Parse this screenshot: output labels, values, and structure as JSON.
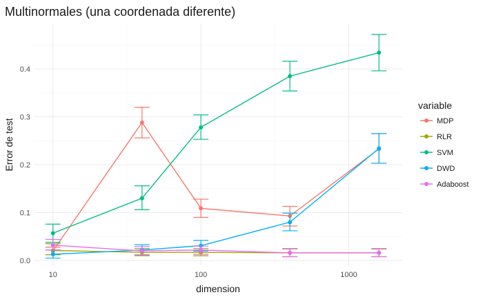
{
  "chart_data": {
    "type": "line",
    "title": "Multinormales (una coordenada diferente)",
    "xlabel": "dimension",
    "ylabel": "Error de test",
    "x_scale": "log10",
    "xlim": [
      7.5,
      2300
    ],
    "ylim": [
      -0.01,
      0.495
    ],
    "x_ticks": [
      10,
      100,
      1000
    ],
    "x_tick_labels": [
      "10",
      "100",
      "1000"
    ],
    "y_ticks": [
      0.0,
      0.1,
      0.2,
      0.3,
      0.4
    ],
    "y_tick_labels": [
      "0.0",
      "0.1",
      "0.2",
      "0.3",
      "0.4"
    ],
    "x": [
      10,
      40,
      100,
      400,
      1600
    ],
    "grid": true,
    "legend": {
      "title": "variable",
      "position": "right"
    },
    "series": [
      {
        "name": "MDP",
        "color": "#F8766D",
        "values": [
          0.02,
          0.288,
          0.109,
          0.093,
          0.233
        ],
        "lower": [
          0.012,
          0.256,
          0.09,
          0.072,
          0.203
        ],
        "upper": [
          0.028,
          0.32,
          0.128,
          0.113,
          0.265
        ]
      },
      {
        "name": "RLR",
        "color": "#A3A500",
        "values": [
          0.021,
          0.017,
          0.017,
          0.016,
          0.016
        ],
        "lower": [
          0.012,
          0.01,
          0.01,
          0.008,
          0.008
        ],
        "upper": [
          0.035,
          0.025,
          0.025,
          0.025,
          0.025
        ]
      },
      {
        "name": "SVM",
        "color": "#00BF7D",
        "values": [
          0.057,
          0.13,
          0.278,
          0.385,
          0.434
        ],
        "lower": [
          0.038,
          0.106,
          0.253,
          0.354,
          0.396
        ],
        "upper": [
          0.076,
          0.156,
          0.304,
          0.416,
          0.472
        ]
      },
      {
        "name": "DWD",
        "color": "#00B0F6",
        "values": [
          0.013,
          0.022,
          0.031,
          0.08,
          0.234
        ],
        "lower": [
          0.005,
          0.012,
          0.02,
          0.062,
          0.203
        ],
        "upper": [
          0.022,
          0.033,
          0.042,
          0.099,
          0.265
        ]
      },
      {
        "name": "Adaboost",
        "color": "#E76BF3",
        "values": [
          0.032,
          0.02,
          0.022,
          0.016,
          0.016
        ],
        "lower": [
          0.022,
          0.012,
          0.013,
          0.008,
          0.008
        ],
        "upper": [
          0.044,
          0.029,
          0.03,
          0.024,
          0.024
        ]
      }
    ]
  }
}
